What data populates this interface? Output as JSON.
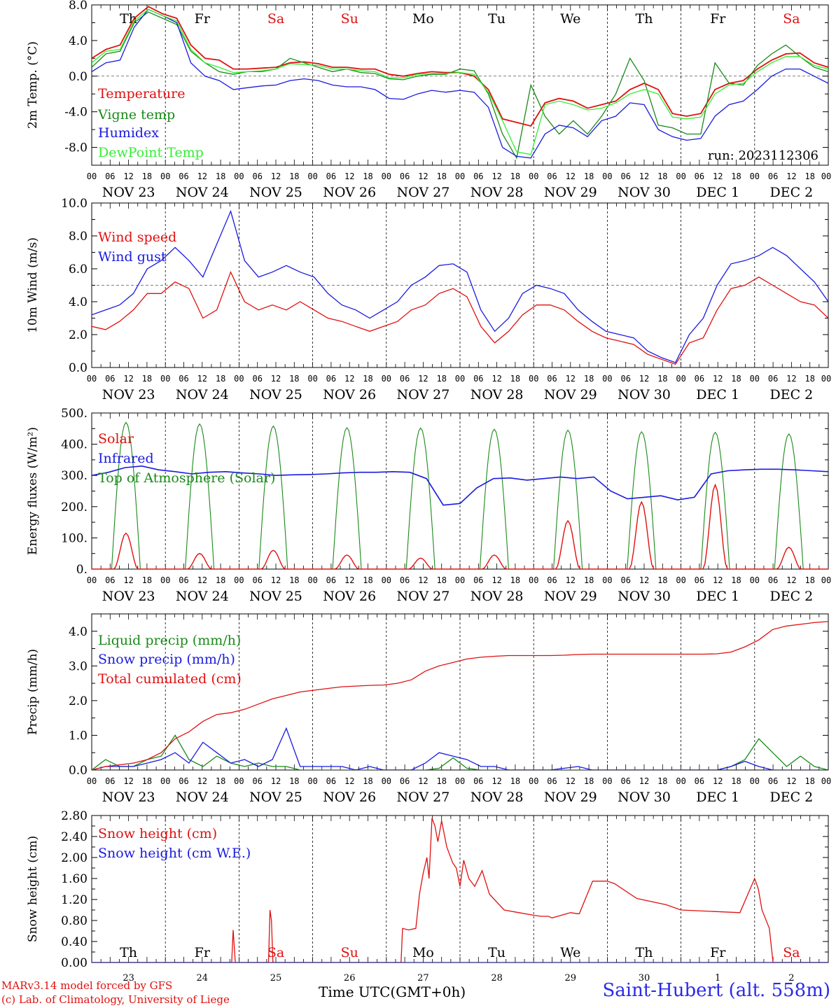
{
  "chart_data": [
    {
      "type": "line",
      "ylabel": "2m Temp. (°C)",
      "ylim": [
        -10,
        8
      ],
      "yticks": [
        8,
        4,
        0,
        -4,
        -8
      ],
      "ytick_labels": [
        "8.0",
        "4.0",
        "0.0",
        "-4.0",
        "-8.0"
      ],
      "reference_line": 0,
      "day_names": [
        "Th",
        "Fr",
        "Sa",
        "Su",
        "Mo",
        "Tu",
        "We",
        "Th",
        "Fr",
        "Sa"
      ],
      "day_name_colors": [
        "#000000",
        "#000000",
        "#e01010",
        "#e01010",
        "#000000",
        "#000000",
        "#000000",
        "#000000",
        "#000000",
        "#e01010"
      ],
      "annotation": "run: 2023112306",
      "legend_placement": "left",
      "series": [
        {
          "name": "Temperature",
          "color": "#e01010",
          "values": [
            2.0,
            3.0,
            3.5,
            6.5,
            7.8,
            7.0,
            6.5,
            3.5,
            2.0,
            1.8,
            0.8,
            0.8,
            0.9,
            1.0,
            1.5,
            1.6,
            1.4,
            1.0,
            1.0,
            0.8,
            0.8,
            0.2,
            0.0,
            0.3,
            0.5,
            0.4,
            0.4,
            0.0,
            -1.5,
            -4.8,
            -5.2,
            -5.6,
            -3.0,
            -2.5,
            -2.8,
            -3.6,
            -3.2,
            -2.8,
            -1.5,
            -0.8,
            -1.5,
            -4.2,
            -4.5,
            -4.2,
            -1.5,
            -0.8,
            -0.5,
            0.8,
            1.8,
            2.5,
            2.6,
            1.5,
            1.0
          ]
        },
        {
          "name": "Vigne temp",
          "color": "#1a8a1a",
          "values": [
            1.0,
            2.5,
            2.8,
            6.0,
            7.2,
            6.5,
            5.8,
            2.8,
            1.5,
            0.5,
            0.2,
            0.5,
            0.5,
            0.8,
            2.0,
            1.5,
            1.0,
            0.5,
            0.8,
            0.4,
            0.3,
            -0.3,
            -0.4,
            0.0,
            0.2,
            0.2,
            0.8,
            0.6,
            -2.0,
            -6.5,
            -9.2,
            -1.0,
            -4.5,
            -6.5,
            -5.0,
            -6.5,
            -4.5,
            -2.0,
            2.0,
            -0.5,
            -5.5,
            -5.8,
            -6.5,
            -6.5,
            1.5,
            -0.8,
            -1.0,
            1.2,
            2.5,
            3.5,
            2.2,
            1.0,
            0.5
          ]
        },
        {
          "name": "Humidex",
          "color": "#1a1ae0",
          "values": [
            0.5,
            1.5,
            1.8,
            5.5,
            7.5,
            6.8,
            6.0,
            1.5,
            0.0,
            -0.5,
            -1.5,
            -1.3,
            -1.1,
            -1.0,
            -0.5,
            -0.3,
            -0.5,
            -1.0,
            -1.2,
            -1.2,
            -1.5,
            -2.5,
            -2.6,
            -2.0,
            -1.6,
            -1.8,
            -1.6,
            -1.8,
            -3.5,
            -8.0,
            -9.0,
            -9.2,
            -6.5,
            -5.5,
            -5.8,
            -6.8,
            -5.0,
            -4.5,
            -3.0,
            -3.2,
            -6.0,
            -6.8,
            -7.2,
            -7.0,
            -4.5,
            -3.2,
            -2.8,
            -1.5,
            0.0,
            0.8,
            0.8,
            0.0,
            -0.8
          ]
        },
        {
          "name": "DewPoint Temp",
          "color": "#33ee33",
          "values": [
            1.5,
            2.8,
            3.0,
            6.2,
            7.5,
            6.8,
            6.2,
            3.0,
            1.5,
            1.0,
            0.4,
            0.5,
            0.6,
            0.8,
            1.4,
            1.3,
            1.2,
            0.8,
            0.8,
            0.6,
            0.5,
            -0.2,
            -0.2,
            0.2,
            0.3,
            0.3,
            0.4,
            0.2,
            -1.8,
            -5.0,
            -8.5,
            -8.8,
            -3.2,
            -2.8,
            -3.2,
            -3.8,
            -3.6,
            -3.0,
            -2.0,
            -1.5,
            -2.0,
            -4.6,
            -4.8,
            -4.6,
            -2.0,
            -1.0,
            -0.8,
            0.5,
            1.5,
            2.2,
            2.2,
            1.2,
            0.8
          ]
        }
      ]
    },
    {
      "type": "line",
      "ylabel": "10m Wind (m/s)",
      "ylim": [
        0,
        10
      ],
      "yticks": [
        0,
        2,
        4,
        6,
        8,
        10
      ],
      "ytick_labels": [
        "0.0",
        "2.0",
        "4.0",
        "6.0",
        "8.0",
        "10.0"
      ],
      "reference_line": 5,
      "legend_placement": "left",
      "series": [
        {
          "name": "Wind speed",
          "color": "#e01010",
          "values": [
            2.5,
            2.3,
            2.8,
            3.5,
            4.5,
            4.5,
            5.2,
            4.8,
            3.0,
            3.5,
            5.8,
            4.0,
            3.5,
            3.8,
            3.5,
            4.0,
            3.5,
            3.0,
            2.8,
            2.5,
            2.2,
            2.5,
            2.8,
            3.5,
            3.8,
            4.5,
            4.8,
            4.3,
            2.5,
            1.5,
            2.2,
            3.2,
            3.8,
            3.8,
            3.5,
            2.8,
            2.2,
            1.8,
            1.6,
            1.4,
            0.8,
            0.5,
            0.2,
            1.5,
            1.8,
            3.5,
            4.8,
            5.0,
            5.5,
            5.0,
            4.5,
            4.0,
            3.8,
            3.0
          ]
        },
        {
          "name": "Wind gust",
          "color": "#1a1ae0",
          "values": [
            3.2,
            3.5,
            3.8,
            4.5,
            6.0,
            6.5,
            7.3,
            6.5,
            5.5,
            7.5,
            9.5,
            6.5,
            5.5,
            5.8,
            6.2,
            5.8,
            5.5,
            4.5,
            3.8,
            3.5,
            3.0,
            3.5,
            4.0,
            5.0,
            5.5,
            6.2,
            6.3,
            5.8,
            3.5,
            2.2,
            3.0,
            4.5,
            5.0,
            4.8,
            4.5,
            3.5,
            2.8,
            2.2,
            2.0,
            1.8,
            1.0,
            0.6,
            0.3,
            2.0,
            3.0,
            5.0,
            6.3,
            6.5,
            6.8,
            7.3,
            6.8,
            6.0,
            5.2,
            4.0
          ]
        }
      ]
    },
    {
      "type": "line",
      "ylabel": "Energy fluxes (W/m²)",
      "ylim": [
        0,
        500
      ],
      "yticks": [
        0,
        100,
        200,
        300,
        400,
        500
      ],
      "ytick_labels": [
        "0.",
        "100.",
        "200.",
        "300.",
        "400.",
        "500."
      ],
      "legend_placement": "left",
      "solar_peaks_by_day": [
        115,
        50,
        60,
        45,
        35,
        45,
        155,
        215,
        270,
        70
      ],
      "toa_peaks_by_day": [
        470,
        465,
        458,
        453,
        452,
        448,
        445,
        440,
        438,
        433
      ],
      "series": [
        {
          "name": "Solar",
          "color": "#e01010",
          "values": []
        },
        {
          "name": "Infrared",
          "color": "#1a1ae0",
          "values": [
            300,
            310,
            325,
            330,
            318,
            312,
            305,
            310,
            312,
            308,
            305,
            300,
            302,
            303,
            305,
            308,
            310,
            310,
            312,
            310,
            290,
            205,
            210,
            260,
            290,
            292,
            285,
            290,
            295,
            290,
            295,
            250,
            225,
            230,
            235,
            222,
            230,
            305,
            315,
            318,
            320,
            320,
            318,
            315,
            312
          ]
        },
        {
          "name": "Top of Atmosphere (Solar)",
          "color": "#1a8a1a",
          "values": []
        }
      ]
    },
    {
      "type": "line",
      "ylabel": "Precip (mm/h)",
      "ylim": [
        0,
        4.5
      ],
      "yticks": [
        0,
        1,
        2,
        3,
        4
      ],
      "ytick_labels": [
        "0.0",
        "1.0",
        "2.0",
        "3.0",
        "4.0"
      ],
      "legend_placement": "left",
      "series": [
        {
          "name": "Liquid precip (mm/h)",
          "color": "#1a8a1a",
          "values": [
            0.0,
            0.3,
            0.1,
            0.1,
            0.3,
            0.4,
            1.0,
            0.3,
            0.1,
            0.4,
            0.2,
            0.1,
            0.2,
            0.1,
            0.1,
            0.0,
            0.0,
            0.0,
            0.0,
            0.0,
            0.0,
            0.0,
            0.0,
            0.0,
            0.0,
            0.05,
            0.35,
            0.05,
            0.0,
            0.0,
            0.0,
            0.0,
            0.0,
            0.0,
            0.0,
            0.0,
            0.0,
            0.0,
            0.0,
            0.0,
            0.0,
            0.0,
            0.0,
            0.0,
            0.0,
            0.0,
            0.1,
            0.3,
            0.9,
            0.5,
            0.1,
            0.4,
            0.1,
            0.0
          ]
        },
        {
          "name": "Snow precip (mm/h)",
          "color": "#1a1ae0",
          "values": [
            0.0,
            0.1,
            0.1,
            0.1,
            0.2,
            0.3,
            0.5,
            0.2,
            0.8,
            0.5,
            0.2,
            0.3,
            0.1,
            0.3,
            1.2,
            0.1,
            0.1,
            0.1,
            0.1,
            0.0,
            0.1,
            0.0,
            0.0,
            0.0,
            0.2,
            0.5,
            0.4,
            0.3,
            0.1,
            0.1,
            0.0,
            0.0,
            0.0,
            0.0,
            0.05,
            0.1,
            0.0,
            0.0,
            0.0,
            0.0,
            0.0,
            0.0,
            0.0,
            0.0,
            0.0,
            0.0,
            0.1,
            0.25,
            0.1,
            0.0,
            0.0,
            0.0,
            0.0,
            0.0
          ]
        },
        {
          "name": "Total cumulated (cm)",
          "color": "#e01010",
          "values": [
            0.0,
            0.1,
            0.15,
            0.2,
            0.3,
            0.5,
            0.9,
            1.1,
            1.4,
            1.6,
            1.65,
            1.75,
            1.9,
            2.05,
            2.15,
            2.25,
            2.3,
            2.35,
            2.4,
            2.42,
            2.44,
            2.45,
            2.5,
            2.6,
            2.85,
            3.0,
            3.1,
            3.2,
            3.25,
            3.28,
            3.3,
            3.3,
            3.3,
            3.3,
            3.31,
            3.33,
            3.34,
            3.34,
            3.34,
            3.34,
            3.34,
            3.34,
            3.34,
            3.34,
            3.34,
            3.35,
            3.4,
            3.55,
            3.75,
            4.05,
            4.15,
            4.2,
            4.25,
            4.28
          ]
        }
      ]
    },
    {
      "type": "line",
      "ylabel": "Snow height (cm)",
      "ylim": [
        0,
        2.8
      ],
      "yticks": [
        0,
        0.4,
        0.8,
        1.2,
        1.6,
        2.0,
        2.4,
        2.8
      ],
      "ytick_labels": [
        "0.00",
        "0.40",
        "0.80",
        "1.20",
        "1.60",
        "2.00",
        "2.40",
        "2.80"
      ],
      "legend_placement": "left",
      "day_names": [
        "Th",
        "Fr",
        "Sa",
        "Su",
        "Mo",
        "Tu",
        "We",
        "Th",
        "Fr",
        "Sa"
      ],
      "day_name_colors": [
        "#000000",
        "#000000",
        "#e01010",
        "#e01010",
        "#000000",
        "#000000",
        "#000000",
        "#000000",
        "#000000",
        "#e01010"
      ],
      "day_numbers": [
        "23",
        "24",
        "25",
        "26",
        "27",
        "28",
        "29",
        "30",
        "1",
        "2"
      ],
      "series": [
        {
          "name": "Snow height (cm)",
          "color": "#e01010",
          "x": [
            0,
            1.9,
            1.92,
            1.95,
            1.97,
            2.4,
            2.42,
            2.44,
            2.46,
            4.2,
            4.22,
            4.3,
            4.4,
            4.45,
            4.5,
            4.55,
            4.58,
            4.62,
            4.66,
            4.7,
            4.75,
            4.82,
            4.9,
            4.95,
            5.0,
            5.05,
            5.12,
            5.2,
            5.3,
            5.4,
            5.6,
            5.8,
            6.0,
            6.1,
            6.2,
            6.25,
            6.5,
            6.6,
            6.62,
            6.8,
            7.0,
            7.1,
            7.4,
            7.8,
            8.0,
            8.8,
            9.0,
            9.05,
            9.1,
            9.2,
            9.25,
            9.3,
            10.0
          ],
          "values": [
            0,
            0,
            0.62,
            0,
            0,
            0,
            1.0,
            0.8,
            0,
            0,
            0.65,
            0.62,
            0.65,
            1.3,
            1.7,
            2.0,
            1.6,
            2.75,
            2.6,
            2.3,
            2.7,
            2.2,
            1.9,
            1.8,
            1.45,
            1.95,
            1.6,
            1.45,
            1.75,
            1.3,
            1.0,
            0.95,
            0.9,
            0.88,
            0.88,
            0.85,
            0.95,
            0.93,
            0.93,
            1.55,
            1.55,
            1.5,
            1.22,
            1.1,
            1.0,
            0.95,
            1.6,
            1.4,
            1.0,
            0.65,
            0.0,
            0.0,
            0.0
          ]
        },
        {
          "name": "Snow height (cm W.E.)",
          "color": "#1a1ae0",
          "values": [
            0,
            0
          ]
        }
      ]
    }
  ],
  "x_axis": {
    "hour_ticks": [
      "00",
      "06",
      "12",
      "18"
    ],
    "final_tick": "00",
    "day_labels": [
      "NOV 23",
      "NOV 24",
      "NOV 25",
      "NOV 26",
      "NOV 27",
      "NOV 28",
      "NOV 29",
      "NOV 30",
      "DEC  1",
      "DEC  2"
    ],
    "xlabel": "Time UTC(GMT+0h)"
  },
  "footer": {
    "credit_line1": "MARv3.14 model forced by GFS",
    "credit_line2": "(c) Lab. of Climatology, University of Liege",
    "station": "Saint-Hubert (alt. 558m)"
  }
}
